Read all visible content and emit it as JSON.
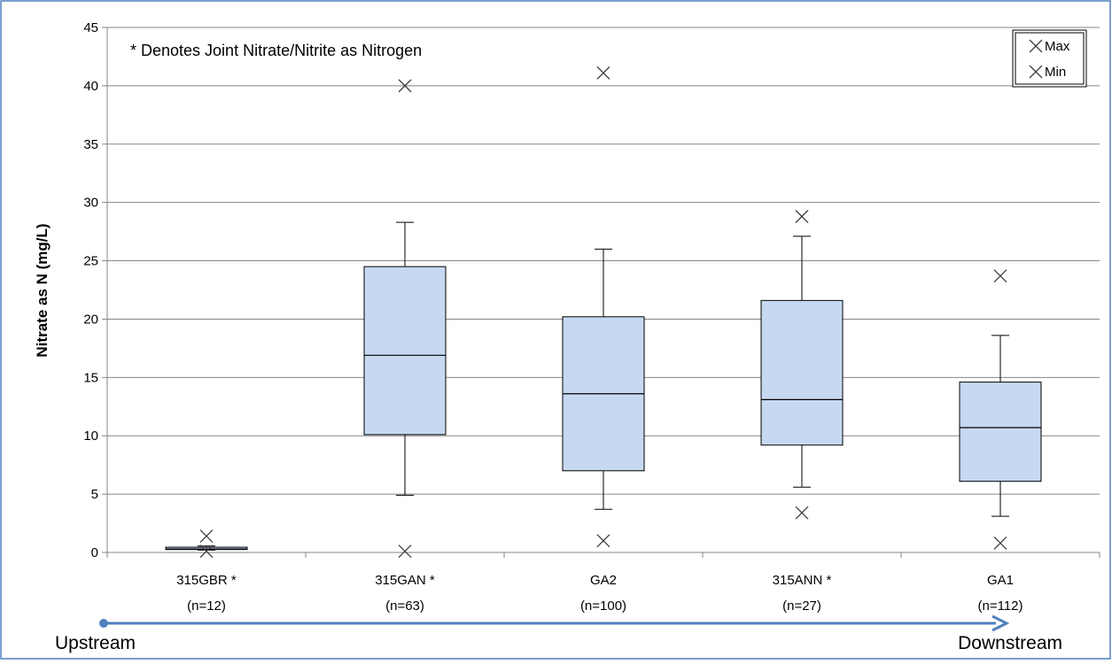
{
  "colors": {
    "frame": "#4f81bd",
    "box_fill": "#c6d9f1",
    "box_stroke": "#000000",
    "grid": "#868686",
    "arrow": "#4f81bd"
  },
  "note": "* Denotes Joint Nitrate/Nitrite as Nitrogen",
  "flow": {
    "start": "Upstream",
    "end": "Downstream"
  },
  "chart_data": {
    "type": "box",
    "title": "",
    "xlabel": "",
    "ylabel": "Nitrate as N (mg/L)",
    "ylim": [
      0,
      45
    ],
    "yticks": [
      0,
      5,
      10,
      15,
      20,
      25,
      30,
      35,
      40,
      45
    ],
    "grid": true,
    "legend": {
      "placement": "top-right",
      "entries": [
        {
          "label": "Max",
          "marker": "x"
        },
        {
          "label": "Min",
          "marker": "x"
        }
      ]
    },
    "categories": [
      "315GBR *",
      "315GAN *",
      "GA2",
      "315ANN *",
      "GA1"
    ],
    "counts": [
      "(n=12)",
      "(n=63)",
      "(n=100)",
      "(n=27)",
      "(n=112)"
    ],
    "boxes": [
      {
        "whisker_low": 0.2,
        "q1": 0.25,
        "median": 0.3,
        "q3": 0.45,
        "whisker_high": 0.55,
        "max": 1.4,
        "min": 0.1
      },
      {
        "whisker_low": 4.9,
        "q1": 10.1,
        "median": 16.9,
        "q3": 24.5,
        "whisker_high": 28.3,
        "max": 40.0,
        "min": 0.1
      },
      {
        "whisker_low": 3.7,
        "q1": 7.0,
        "median": 13.6,
        "q3": 20.2,
        "whisker_high": 26.0,
        "max": 41.1,
        "min": 1.0
      },
      {
        "whisker_low": 5.6,
        "q1": 9.2,
        "median": 13.1,
        "q3": 21.6,
        "whisker_high": 27.1,
        "max": 28.8,
        "min": 3.4
      },
      {
        "whisker_low": 3.1,
        "q1": 6.1,
        "median": 10.7,
        "q3": 14.6,
        "whisker_high": 18.6,
        "max": 23.7,
        "min": 0.8
      }
    ]
  }
}
